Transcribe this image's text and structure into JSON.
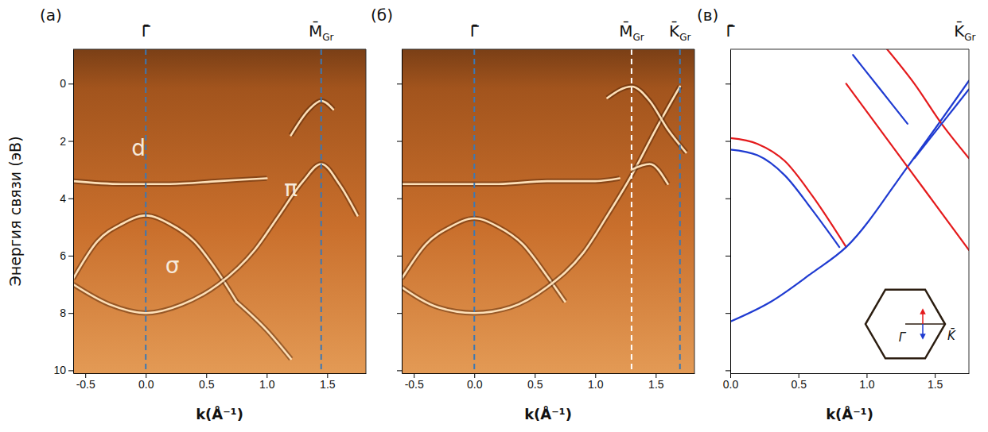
{
  "chart_data": [
    {
      "type": "line",
      "panel_label": "(a)",
      "x_label": "k(Å⁻¹)",
      "y_label": "Энергия связи (эВ)",
      "xlim": [
        -0.6,
        1.82
      ],
      "xticks": [
        {
          "value": -0.5,
          "label": "-0.5"
        },
        {
          "value": 0,
          "label": "0.0"
        },
        {
          "value": 0.5,
          "label": "0.5"
        },
        {
          "value": 1,
          "label": "1.0"
        },
        {
          "value": 1.5,
          "label": "1.5"
        }
      ],
      "ylim": [
        -1.2,
        10.1
      ],
      "yticks": [
        0,
        2,
        4,
        6,
        8,
        10
      ],
      "markers": [
        {
          "label": "Γ̄",
          "value": 0,
          "color": "#3a78b5"
        },
        {
          "label": "M̄",
          "sub": "Gr",
          "value": 1.45,
          "color": "#3a78b5"
        }
      ],
      "annotations": [
        {
          "text": "d",
          "x": -0.06,
          "y": 2.3
        },
        {
          "text": "σ",
          "x": 0.22,
          "y": 6.4
        },
        {
          "text": "π",
          "x": 1.2,
          "y": 3.7
        }
      ],
      "series": [
        {
          "color": "#fde0b8",
          "x": [
            -0.6,
            -0.4,
            -0.2,
            0,
            0.2,
            0.4,
            0.6,
            0.75
          ],
          "values": [
            6.8,
            5.5,
            4.9,
            4.6,
            4.9,
            5.5,
            6.6,
            7.6
          ]
        },
        {
          "color": "#fde0b8",
          "x": [
            -0.6,
            -0.3,
            0,
            0.3,
            0.6,
            0.9,
            1.1,
            1.3,
            1.45,
            1.6,
            1.75
          ],
          "values": [
            7.0,
            7.7,
            8.0,
            7.7,
            7.0,
            5.8,
            4.6,
            3.4,
            2.8,
            3.5,
            4.6
          ]
        },
        {
          "color": "#fde0b8",
          "x": [
            -0.6,
            -0.2,
            0.2,
            0.6,
            1.0
          ],
          "values": [
            3.4,
            3.5,
            3.5,
            3.4,
            3.3
          ]
        },
        {
          "color": "#fde0b8",
          "x": [
            1.2,
            1.35,
            1.45,
            1.55
          ],
          "values": [
            1.8,
            0.9,
            0.6,
            0.9
          ]
        },
        {
          "color": "#fde0b8",
          "x": [
            0.75,
            1.0,
            1.2
          ],
          "values": [
            7.6,
            8.6,
            9.6
          ]
        }
      ]
    },
    {
      "type": "line",
      "panel_label": "(б)",
      "x_label": "k(Å⁻¹)",
      "tick_labels": "x",
      "xlim": [
        -0.6,
        1.82
      ],
      "xticks": [
        {
          "value": -0.5,
          "label": "-0.5"
        },
        {
          "value": 0,
          "label": "0.0"
        },
        {
          "value": 0.5,
          "label": "0.5"
        },
        {
          "value": 1,
          "label": "1.0"
        },
        {
          "value": 1.5,
          "label": "1.5"
        }
      ],
      "ylim": [
        -1.2,
        10.1
      ],
      "yticks": [
        0,
        2,
        4,
        6,
        8,
        10
      ],
      "markers": [
        {
          "label": "Γ̄",
          "value": 0,
          "color": "#3a78b5"
        },
        {
          "label": "M̄",
          "sub": "Gr",
          "value": 1.3,
          "color": "#ffffff"
        },
        {
          "label": "K̄",
          "sub": "Gr",
          "value": 1.7,
          "color": "#3a78b5"
        }
      ],
      "series": [
        {
          "color": "#fde0b8",
          "x": [
            -0.6,
            -0.4,
            -0.2,
            0,
            0.2,
            0.4,
            0.6,
            0.75
          ],
          "values": [
            6.8,
            5.6,
            5.0,
            4.7,
            5.0,
            5.6,
            6.7,
            7.6
          ]
        },
        {
          "color": "#fde0b8",
          "x": [
            -0.6,
            -0.3,
            0,
            0.3,
            0.6,
            0.9,
            1.1,
            1.3,
            1.5,
            1.7
          ],
          "values": [
            7.1,
            7.8,
            8.0,
            7.8,
            7.1,
            5.9,
            4.6,
            3.2,
            1.6,
            0.1
          ]
        },
        {
          "color": "#fde0b8",
          "x": [
            -0.6,
            -0.2,
            0.2,
            0.6,
            1.0,
            1.2
          ],
          "values": [
            3.5,
            3.5,
            3.5,
            3.4,
            3.4,
            3.3
          ]
        },
        {
          "color": "#fde0b8",
          "x": [
            1.1,
            1.3,
            1.45,
            1.6,
            1.75
          ],
          "values": [
            0.5,
            0.1,
            0.6,
            1.6,
            2.4
          ]
        },
        {
          "color": "#fde0b8",
          "x": [
            1.3,
            1.45,
            1.6
          ],
          "values": [
            3.0,
            2.8,
            3.5
          ]
        }
      ]
    },
    {
      "type": "line",
      "panel_label": "(в)",
      "x_label": "k(Å⁻¹)",
      "tick_labels": "x",
      "xlim": [
        0,
        1.75
      ],
      "xticks": [
        {
          "value": 0,
          "label": "0.0"
        },
        {
          "value": 0.5,
          "label": "0.5"
        },
        {
          "value": 1,
          "label": "1.0"
        },
        {
          "value": 1.5,
          "label": "1.5"
        }
      ],
      "ylim": [
        -1.2,
        10.1
      ],
      "yticks": [
        0,
        2,
        4,
        6,
        8,
        10
      ],
      "markers": [
        {
          "label": "Γ̄",
          "value": 0
        },
        {
          "label": "K̄",
          "sub": "Gr",
          "value": 1.72
        }
      ],
      "inset": {
        "labels": [
          "Γ̄",
          "K̄"
        ]
      },
      "series": [
        {
          "color": "#e41a1c",
          "x": [
            0,
            0.2,
            0.4,
            0.6,
            0.85
          ],
          "values": [
            1.9,
            2.1,
            2.7,
            3.9,
            5.7
          ]
        },
        {
          "color": "#1f3bd1",
          "x": [
            0,
            0.2,
            0.4,
            0.6,
            0.8
          ],
          "values": [
            2.3,
            2.5,
            3.2,
            4.4,
            5.7
          ]
        },
        {
          "color": "#1f3bd1",
          "x": [
            0,
            0.3,
            0.6,
            0.85,
            1.3,
            1.75
          ],
          "values": [
            8.3,
            7.6,
            6.6,
            5.7,
            2.9,
            -0.1
          ]
        },
        {
          "color": "#e41a1c",
          "x": [
            0.85,
            1.3,
            1.75
          ],
          "values": [
            0.0,
            2.9,
            5.8
          ]
        },
        {
          "color": "#e41a1c",
          "x": [
            1.15,
            1.35,
            1.55,
            1.75
          ],
          "values": [
            -1.2,
            0.0,
            1.4,
            2.6
          ]
        },
        {
          "color": "#1f3bd1",
          "x": [
            1.35,
            1.55,
            1.75
          ],
          "values": [
            2.6,
            1.4,
            0.2
          ]
        },
        {
          "color": "#1f3bd1",
          "x": [
            0.9,
            1.1,
            1.3
          ],
          "values": [
            -1.0,
            0.2,
            1.4
          ]
        }
      ]
    }
  ]
}
